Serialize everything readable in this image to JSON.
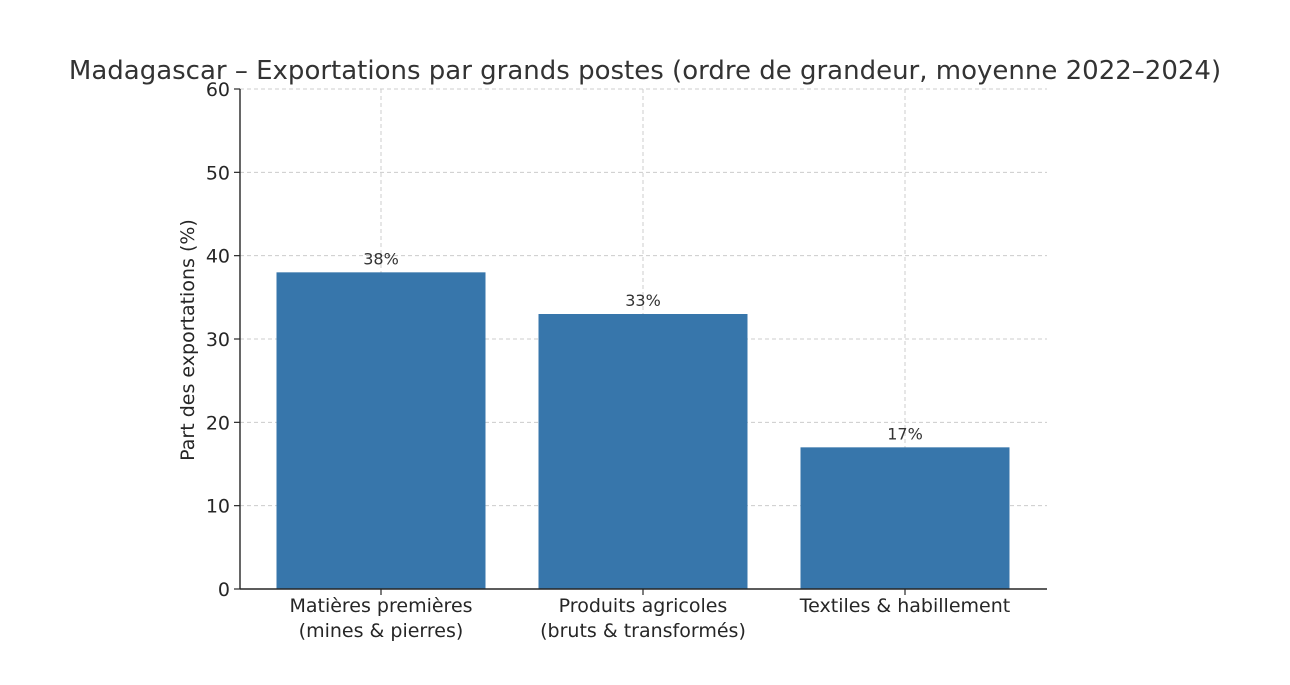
{
  "chart_data": {
    "type": "bar",
    "title": "Madagascar – Exportations par grands postes (ordre de grandeur, moyenne 2022–2024)",
    "ylabel": "Part des exportations (%)",
    "xlabel": "",
    "categories": [
      [
        "Matières premières",
        "(mines & pierres)"
      ],
      [
        "Produits agricoles",
        "(bruts & transformés)"
      ],
      [
        "Textiles & habillement"
      ]
    ],
    "values": [
      38,
      33,
      17
    ],
    "data_labels": [
      "38%",
      "33%",
      "17%"
    ],
    "ylim": [
      0,
      60
    ],
    "yticks": [
      "0",
      "10",
      "20",
      "30",
      "40",
      "50",
      "60"
    ],
    "grid": true,
    "bar_color": "#3776ab"
  }
}
